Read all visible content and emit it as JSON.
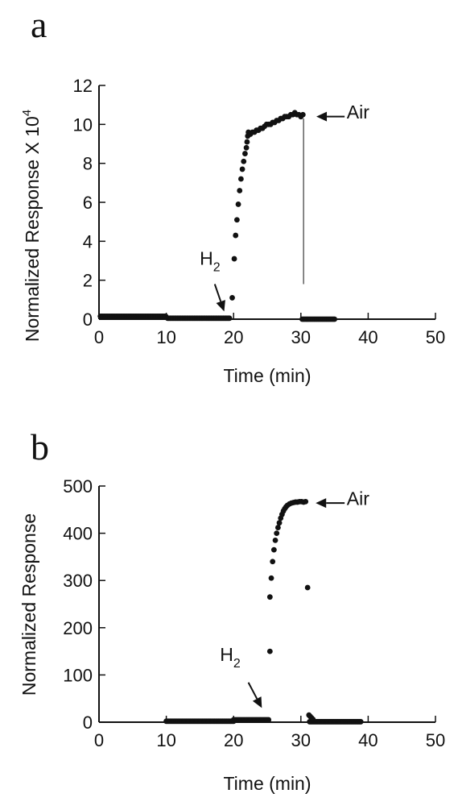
{
  "chart_data": [
    {
      "type": "scatter",
      "panel_label": "a",
      "xlabel": "Time (min)",
      "ylabel": "Normalized Response X 10",
      "ylabel_exponent": "4",
      "xlim": [
        0,
        50
      ],
      "ylim": [
        0,
        12
      ],
      "x_ticks": [
        0,
        10,
        20,
        30,
        40,
        50
      ],
      "y_ticks": [
        0,
        2,
        4,
        6,
        8,
        10,
        12
      ],
      "annotations": [
        {
          "text": "H",
          "sub": "2",
          "x": 16.5,
          "y": 2.8
        },
        {
          "text": "Air",
          "x": 38.5,
          "y": 10.3
        }
      ],
      "arrows": [
        {
          "from": [
            17.2,
            1.8
          ],
          "to": [
            18.6,
            0.4
          ]
        },
        {
          "from": [
            36.5,
            10.4
          ],
          "to": [
            32.3,
            10.4
          ]
        }
      ],
      "vline": {
        "x": 30.4,
        "y0": 1.8,
        "y1": 10.3
      },
      "segments": [
        {
          "x0": 0.2,
          "x1": 10,
          "y": 0.15,
          "step": 0.18
        },
        {
          "x0": 10.2,
          "x1": 19.5,
          "y": 0.05,
          "step": 0.18
        },
        {
          "x0": 30.2,
          "x1": 35,
          "y": 0.0,
          "step": 0.2
        }
      ],
      "points": [
        [
          19.8,
          1.1
        ],
        [
          20.1,
          3.1
        ],
        [
          20.3,
          4.3
        ],
        [
          20.5,
          5.1
        ],
        [
          20.7,
          5.9
        ],
        [
          20.9,
          6.6
        ],
        [
          21.1,
          7.2
        ],
        [
          21.3,
          7.7
        ],
        [
          21.5,
          8.1
        ],
        [
          21.7,
          8.5
        ],
        [
          21.9,
          8.8
        ],
        [
          22.0,
          9.1
        ],
        [
          22.1,
          9.4
        ],
        [
          22.2,
          9.6
        ],
        [
          22.5,
          9.5
        ],
        [
          22.8,
          9.6
        ],
        [
          23.1,
          9.6
        ],
        [
          23.4,
          9.7
        ],
        [
          23.7,
          9.7
        ],
        [
          24.0,
          9.8
        ],
        [
          24.3,
          9.8
        ],
        [
          24.6,
          9.9
        ],
        [
          24.9,
          10.0
        ],
        [
          25.2,
          10.0
        ],
        [
          25.5,
          10.0
        ],
        [
          25.8,
          10.1
        ],
        [
          26.1,
          10.1
        ],
        [
          26.4,
          10.2
        ],
        [
          26.7,
          10.2
        ],
        [
          27.0,
          10.3
        ],
        [
          27.3,
          10.3
        ],
        [
          27.6,
          10.4
        ],
        [
          27.9,
          10.4
        ],
        [
          28.2,
          10.4
        ],
        [
          28.5,
          10.5
        ],
        [
          28.8,
          10.5
        ],
        [
          29.1,
          10.6
        ],
        [
          29.4,
          10.5
        ],
        [
          29.7,
          10.5
        ],
        [
          30.0,
          10.4
        ],
        [
          30.3,
          10.5
        ]
      ]
    },
    {
      "type": "scatter",
      "panel_label": "b",
      "xlabel": "Time (min)",
      "ylabel": "Normalized Response",
      "xlim": [
        0,
        50
      ],
      "ylim": [
        0,
        500
      ],
      "x_ticks": [
        0,
        10,
        20,
        30,
        40,
        50
      ],
      "y_ticks": [
        0,
        100,
        200,
        300,
        400,
        500
      ],
      "annotations": [
        {
          "text": "H",
          "sub": "2",
          "x": 19.5,
          "y": 130
        },
        {
          "text": "Air",
          "x": 38.5,
          "y": 460
        }
      ],
      "arrows": [
        {
          "from": [
            22.2,
            84
          ],
          "to": [
            24.2,
            30
          ]
        },
        {
          "from": [
            36.5,
            464
          ],
          "to": [
            32.2,
            464
          ]
        }
      ],
      "segments": [
        {
          "x0": 10,
          "x1": 20,
          "y": 2,
          "step": 0.2
        },
        {
          "x0": 20,
          "x1": 25.2,
          "y": 5,
          "step": 0.2
        },
        {
          "x0": 31.3,
          "x1": 39,
          "y": 1,
          "step": 0.2
        }
      ],
      "points": [
        [
          25.4,
          150
        ],
        [
          25.4,
          265
        ],
        [
          25.6,
          305
        ],
        [
          25.8,
          340
        ],
        [
          26.0,
          365
        ],
        [
          26.2,
          385
        ],
        [
          26.4,
          400
        ],
        [
          26.6,
          412
        ],
        [
          26.8,
          422
        ],
        [
          27.0,
          432
        ],
        [
          27.2,
          440
        ],
        [
          27.4,
          447
        ],
        [
          27.6,
          452
        ],
        [
          27.8,
          456
        ],
        [
          28.0,
          459
        ],
        [
          28.3,
          462
        ],
        [
          28.6,
          464
        ],
        [
          28.9,
          465
        ],
        [
          29.2,
          466
        ],
        [
          29.5,
          466
        ],
        [
          29.8,
          467
        ],
        [
          30.1,
          467
        ],
        [
          30.4,
          466
        ],
        [
          30.7,
          467
        ],
        [
          31.0,
          285
        ],
        [
          31.2,
          15
        ],
        [
          31.4,
          12
        ],
        [
          31.6,
          9
        ],
        [
          31.8,
          6
        ]
      ]
    }
  ]
}
